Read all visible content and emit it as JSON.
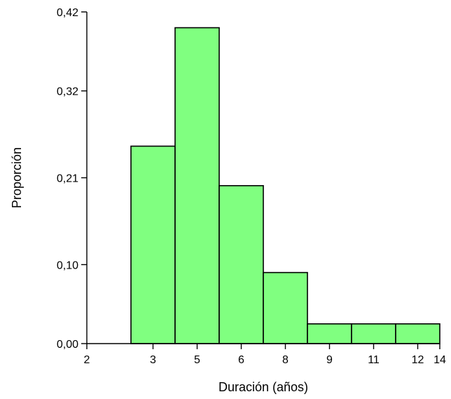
{
  "chart_data": {
    "type": "bar",
    "xlabel": "Duración (años)",
    "ylabel": "Proporción",
    "bar_color": "#80ff80",
    "edge_color": "#000000",
    "bins": [
      {
        "start": 2.5,
        "end": 3.5,
        "value": 0.25
      },
      {
        "start": 3.5,
        "end": 4.5,
        "value": 0.4
      },
      {
        "start": 4.5,
        "end": 5.5,
        "value": 0.2
      },
      {
        "start": 5.5,
        "end": 6.5,
        "value": 0.09
      },
      {
        "start": 6.5,
        "end": 7.5,
        "value": 0.025
      },
      {
        "start": 7.5,
        "end": 8.5,
        "value": 0.025
      },
      {
        "start": 8.5,
        "end": 9.5,
        "value": 0.025
      }
    ],
    "x_ticks": [
      {
        "pos": 1.5,
        "label": "2"
      },
      {
        "pos": 3,
        "label": "3"
      },
      {
        "pos": 4,
        "label": "5"
      },
      {
        "pos": 5,
        "label": "6"
      },
      {
        "pos": 6,
        "label": "8"
      },
      {
        "pos": 7,
        "label": "9"
      },
      {
        "pos": 8,
        "label": "11"
      },
      {
        "pos": 9,
        "label": "12"
      },
      {
        "pos": 9.5,
        "label": "14"
      }
    ],
    "y_ticks": [
      {
        "value": 0.0,
        "label": "0,00"
      },
      {
        "value": 0.1,
        "label": "0,10"
      },
      {
        "value": 0.21,
        "label": "0,21"
      },
      {
        "value": 0.32,
        "label": "0,32"
      },
      {
        "value": 0.42,
        "label": "0,42"
      }
    ],
    "xlim": [
      1.5,
      9.5
    ],
    "ylim": [
      0,
      0.42
    ],
    "grid": false
  }
}
